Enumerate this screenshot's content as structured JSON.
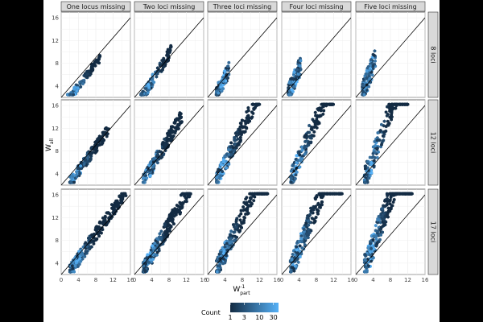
{
  "chart_data": {
    "type": "hexbin",
    "xlabel_main": "W",
    "xlabel_sup": "-1",
    "xlabel_sub": "part",
    "ylabel_main": "W",
    "ylabel_sub": "all",
    "xlim": [
      0,
      16
    ],
    "ylim": [
      2,
      17
    ],
    "x_ticks": [
      "0",
      "4",
      "8",
      "12",
      "16"
    ],
    "y_ticks": [
      "4",
      "8",
      "12",
      "16"
    ],
    "reference_line": "y = x",
    "grid": true,
    "columns": [
      "One locus missing",
      "Two loci missing",
      "Three loci missing",
      "Four loci missing",
      "Five loci missing"
    ],
    "rows": [
      "8 loci",
      "12 loci",
      "17 loci"
    ],
    "panels": [
      [
        {
          "spread": [
            1.5,
            9,
            1.2,
            9
          ]
        },
        {
          "spread": [
            1.5,
            8.5,
            1.2,
            9
          ]
        },
        {
          "spread": [
            2,
            5,
            2,
            9
          ]
        },
        {
          "spread": [
            1.5,
            4.5,
            2,
            9
          ]
        },
        {
          "spread": [
            1.5,
            4.5,
            2,
            9
          ]
        }
      ],
      [
        {
          "spread": [
            2,
            11,
            2,
            13
          ]
        },
        {
          "spread": [
            2,
            11,
            2,
            13
          ]
        },
        {
          "spread": [
            2,
            12,
            2,
            13
          ]
        },
        {
          "spread": [
            2,
            12,
            2,
            13
          ]
        },
        {
          "spread": [
            2,
            12,
            2,
            13
          ]
        }
      ],
      [
        {
          "spread": [
            2,
            15,
            2,
            16
          ]
        },
        {
          "spread": [
            2,
            13,
            2,
            15
          ]
        },
        {
          "spread": [
            2,
            14,
            2,
            15
          ]
        },
        {
          "spread": [
            2,
            14,
            2,
            15
          ]
        },
        {
          "spread": [
            2,
            13,
            2,
            15
          ]
        }
      ]
    ],
    "legend": {
      "title": "Count",
      "labels": [
        "1",
        "3",
        "10",
        "30"
      ],
      "values": [
        1,
        3,
        10,
        30
      ],
      "colors": [
        "#132B43",
        "#56B1F7"
      ]
    },
    "colors": {
      "low": "#132B43",
      "high": "#56B1F7",
      "panel_bg": "#ffffff",
      "strip_bg": "#d9d9d9",
      "grid": "#ebebeb"
    }
  }
}
